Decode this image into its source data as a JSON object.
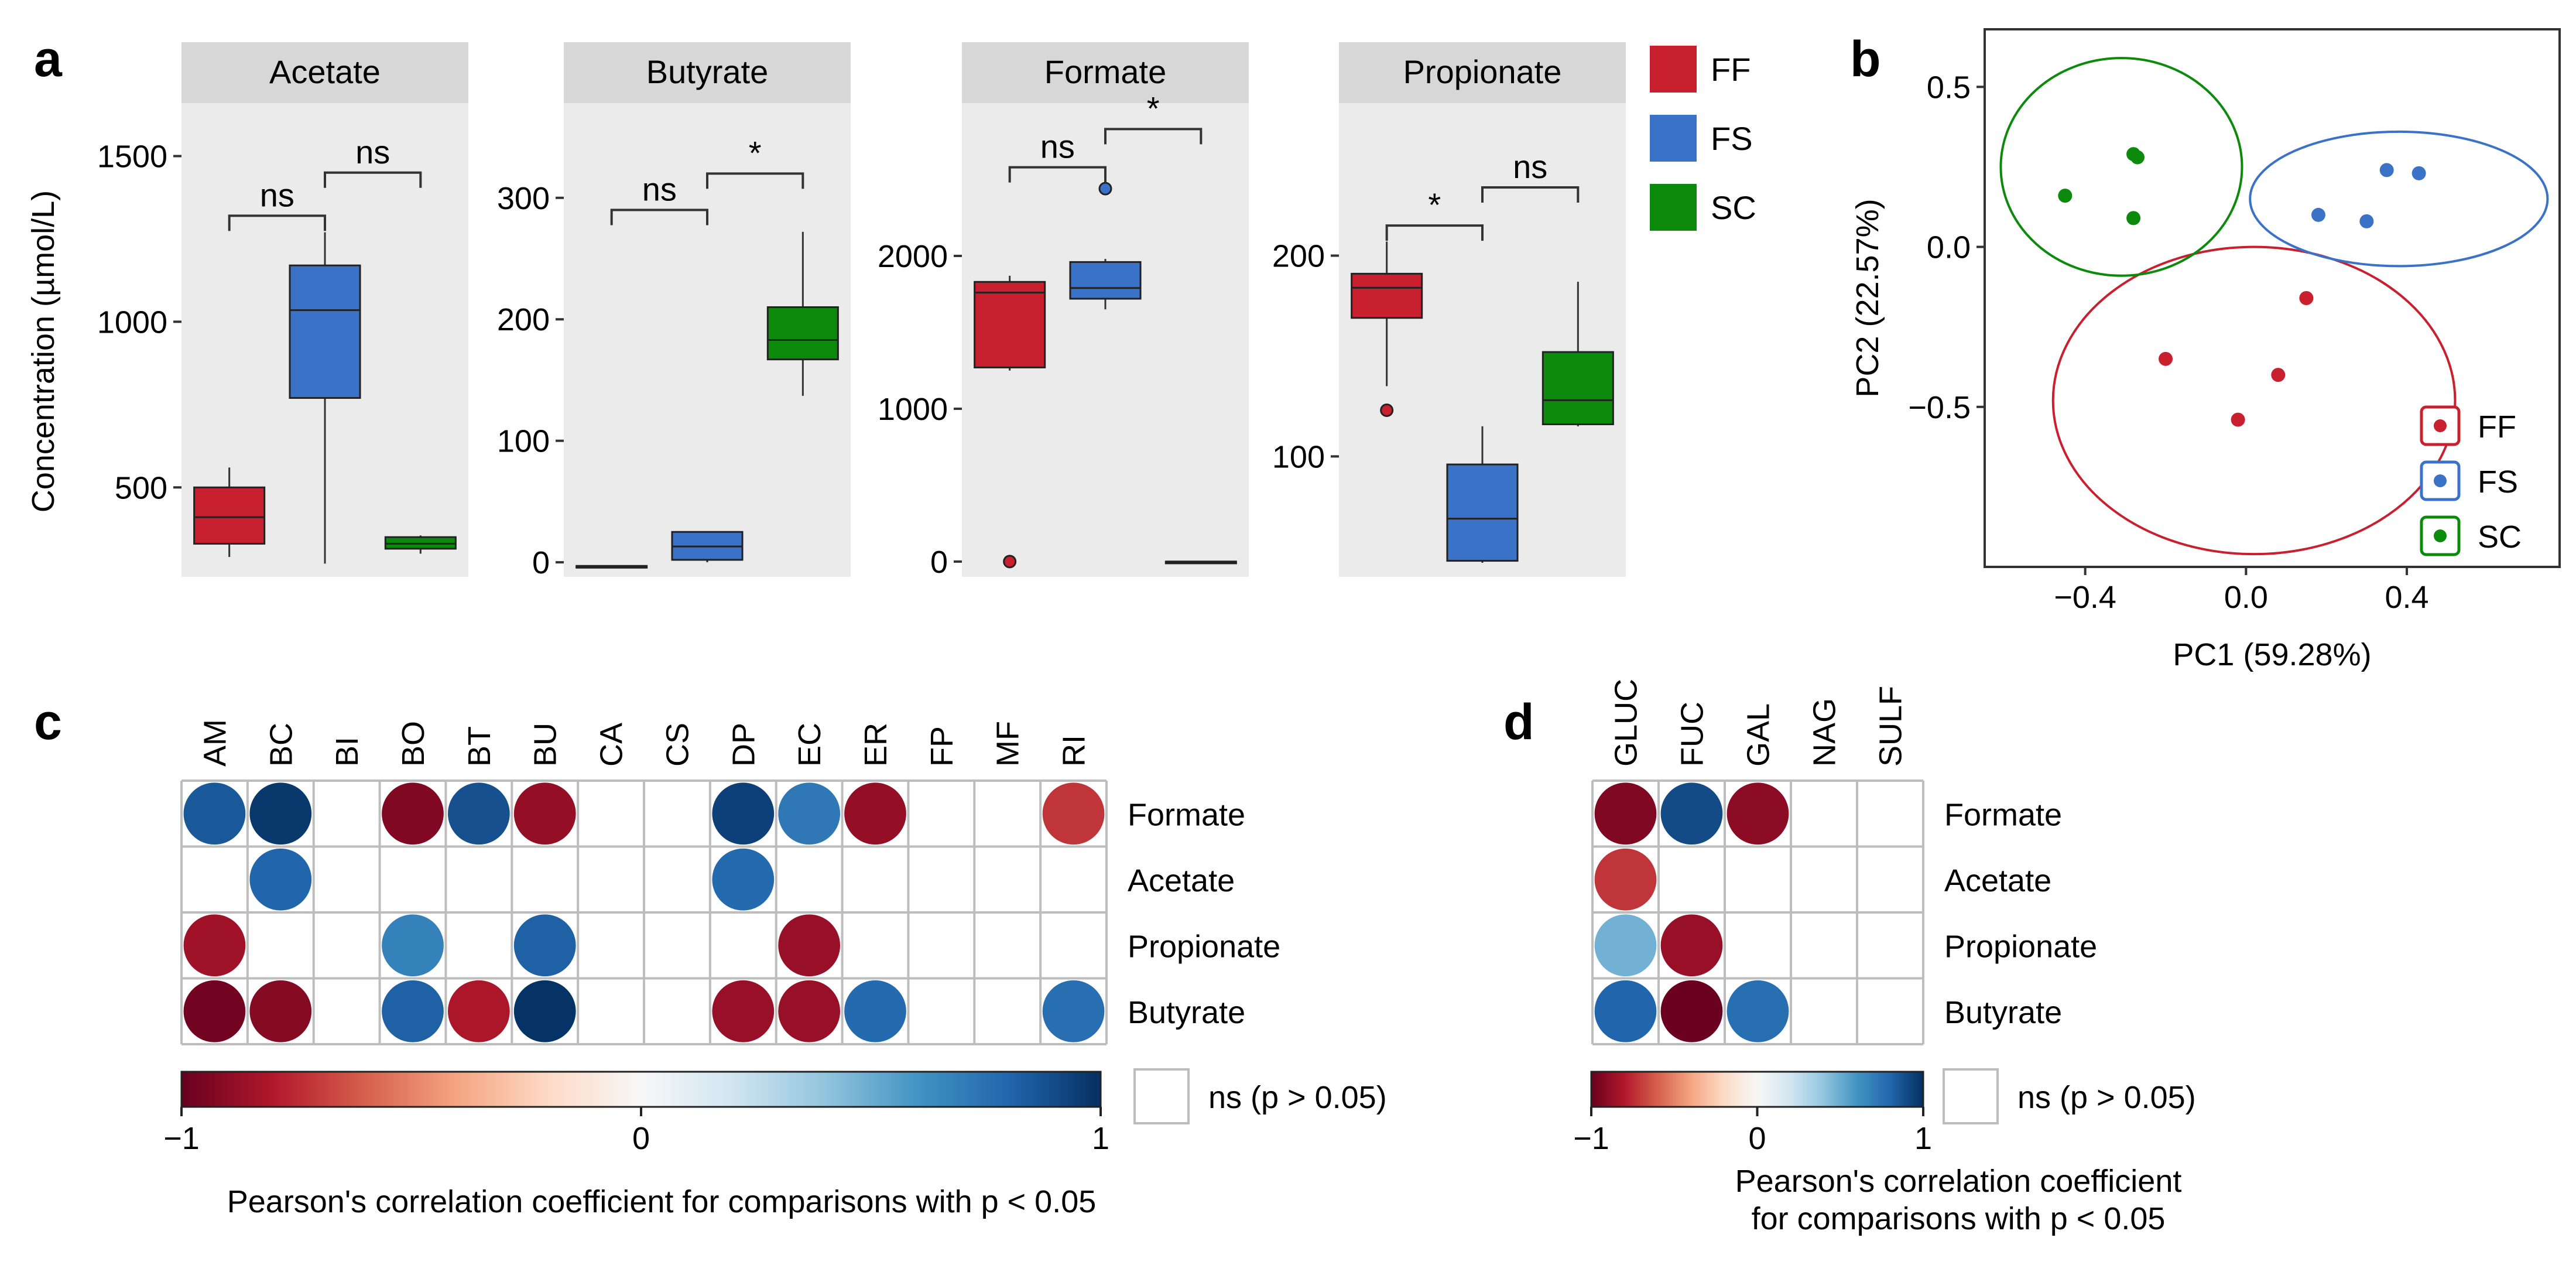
{
  "panel_labels": {
    "a": "a",
    "b": "b",
    "c": "c",
    "d": "d"
  },
  "colors": {
    "FF": "#C8202F",
    "FS": "#3A72C8",
    "SC": "#0C8A0C",
    "neg": "#6A0020",
    "pos": "#0B2A5A",
    "panel_bg": "#EBEBEB",
    "strip_bg": "#D7D7D7"
  },
  "chart_data": [
    {
      "type": "box",
      "id": "panel-a",
      "ylabel": "Concentration (µmol/L)",
      "groups": [
        "FF",
        "FS",
        "SC"
      ],
      "facets": [
        {
          "title": "Acetate",
          "ylim": [
            230,
            1660
          ],
          "yticks": [
            500,
            1000,
            1500
          ],
          "boxes": [
            {
              "group": "FF",
              "min": 290,
              "q1": 330,
              "median": 410,
              "q3": 500,
              "max": 560,
              "outliers": []
            },
            {
              "group": "FS",
              "min": 270,
              "q1": 770,
              "median": 1035,
              "q3": 1170,
              "max": 1270,
              "outliers": []
            },
            {
              "group": "SC",
              "min": 300,
              "q1": 315,
              "median": 330,
              "q3": 350,
              "max": 355,
              "outliers": []
            }
          ],
          "comparisons": [
            {
              "a": "FF",
              "b": "FS",
              "label": "ns",
              "y": 1320
            },
            {
              "a": "FS",
              "b": "SC",
              "label": "ns",
              "y": 1450
            }
          ]
        },
        {
          "title": "Butyrate",
          "ylim": [
            -12,
            378
          ],
          "yticks": [
            0,
            100,
            200,
            300
          ],
          "boxes": [
            {
              "group": "FF",
              "min": -3,
              "q1": -3,
              "median": -3,
              "q3": -3,
              "max": -3,
              "outliers": []
            },
            {
              "group": "FS",
              "min": 0,
              "q1": 2,
              "median": 13,
              "q3": 25,
              "max": 25,
              "outliers": []
            },
            {
              "group": "SC",
              "min": 137,
              "q1": 167,
              "median": 183,
              "q3": 210,
              "max": 272,
              "outliers": []
            }
          ],
          "comparisons": [
            {
              "a": "FF",
              "b": "FS",
              "label": "ns",
              "y": 290
            },
            {
              "a": "FS",
              "b": "SC",
              "label": "*",
              "y": 320
            }
          ]
        },
        {
          "title": "Formate",
          "ylim": [
            -100,
            3000
          ],
          "yticks": [
            0,
            1000,
            2000
          ],
          "boxes": [
            {
              "group": "FF",
              "min": 1250,
              "q1": 1270,
              "median": 1760,
              "q3": 1830,
              "max": 1870,
              "outliers": [
                0
              ]
            },
            {
              "group": "FS",
              "min": 1650,
              "q1": 1720,
              "median": 1790,
              "q3": 1960,
              "max": 1980,
              "outliers": [
                2440
              ]
            },
            {
              "group": "SC",
              "min": 0,
              "q1": 0,
              "median": 0,
              "q3": 0,
              "max": 0,
              "outliers": []
            }
          ],
          "comparisons": [
            {
              "a": "FF",
              "b": "FS",
              "label": "ns",
              "y": 2580
            },
            {
              "a": "FS",
              "b": "SC",
              "label": "*",
              "y": 2830
            }
          ]
        },
        {
          "title": "Propionate",
          "ylim": [
            40,
            276
          ],
          "yticks": [
            100,
            200
          ],
          "boxes": [
            {
              "group": "FF",
              "min": 135,
              "q1": 169,
              "median": 184,
              "q3": 191,
              "max": 207,
              "outliers": [
                123
              ]
            },
            {
              "group": "FS",
              "min": 47,
              "q1": 48,
              "median": 69,
              "q3": 96,
              "max": 115,
              "outliers": []
            },
            {
              "group": "SC",
              "min": 115,
              "q1": 116,
              "median": 128,
              "q3": 152,
              "max": 187,
              "outliers": []
            }
          ],
          "comparisons": [
            {
              "a": "FF",
              "b": "FS",
              "label": "*",
              "y": 215
            },
            {
              "a": "FS",
              "b": "SC",
              "label": "ns",
              "y": 234
            }
          ]
        }
      ],
      "legend": [
        "FF",
        "FS",
        "SC"
      ]
    },
    {
      "type": "scatter",
      "id": "panel-b",
      "xlabel": "PC1 (59.28%)",
      "ylabel": "PC2 (22.57%)",
      "xlim": [
        -0.65,
        0.78
      ],
      "ylim": [
        -1.0,
        0.68
      ],
      "xticks": [
        -0.4,
        0.0,
        0.4
      ],
      "xtick_labels": [
        "−0.4",
        "0.0",
        "0.4"
      ],
      "yticks": [
        0.5,
        0.0,
        -0.5
      ],
      "ytick_labels": [
        "0.5",
        "0.0",
        "−0.5"
      ],
      "series": [
        {
          "name": "FF",
          "x": [
            -0.2,
            0.15,
            -0.02,
            0.08
          ],
          "y": [
            -0.35,
            -0.16,
            -0.54,
            -0.4
          ],
          "ellipse": {
            "cx": 0.02,
            "cy": -0.48,
            "rx": 0.5,
            "ry": 0.48
          }
        },
        {
          "name": "FS",
          "x": [
            0.18,
            0.3,
            0.35,
            0.43
          ],
          "y": [
            0.1,
            0.08,
            0.24,
            0.23
          ],
          "ellipse": {
            "cx": 0.38,
            "cy": 0.15,
            "rx": 0.37,
            "ry": 0.21
          }
        },
        {
          "name": "SC",
          "x": [
            -0.45,
            -0.28,
            -0.27,
            -0.28
          ],
          "y": [
            0.16,
            0.29,
            0.28,
            0.09
          ],
          "ellipse": {
            "cx": -0.31,
            "cy": 0.25,
            "rx": 0.3,
            "ry": 0.34
          }
        }
      ],
      "legend": [
        "FF",
        "FS",
        "SC"
      ]
    },
    {
      "type": "heatmap",
      "id": "panel-c",
      "columns": [
        "AM",
        "BC",
        "BI",
        "BO",
        "BT",
        "BU",
        "CA",
        "CS",
        "DP",
        "EC",
        "ER",
        "FP",
        "MF",
        "RI"
      ],
      "rows": [
        "Formate",
        "Acetate",
        "Propionate",
        "Butyrate"
      ],
      "values": [
        [
          0.85,
          0.97,
          null,
          -0.93,
          0.88,
          -0.88,
          null,
          null,
          0.94,
          0.72,
          -0.88,
          null,
          null,
          -0.72
        ],
        [
          null,
          0.8,
          null,
          null,
          null,
          null,
          null,
          null,
          0.78,
          null,
          null,
          null,
          null,
          null
        ],
        [
          -0.85,
          null,
          null,
          0.68,
          null,
          0.82,
          null,
          null,
          null,
          -0.87,
          null,
          null,
          null,
          null
        ],
        [
          -0.97,
          -0.92,
          null,
          0.82,
          -0.82,
          0.99,
          null,
          null,
          -0.87,
          -0.87,
          0.78,
          null,
          null,
          0.76
        ]
      ],
      "colorbar": {
        "min": -1,
        "max": 1,
        "ticks": [
          -1,
          0,
          1
        ],
        "tick_labels": [
          "−1",
          "0",
          "1"
        ]
      },
      "legend_ns": "ns (p > 0.05)",
      "caption": "Pearson's correlation coefficient for comparisons with p < 0.05"
    },
    {
      "type": "heatmap",
      "id": "panel-d",
      "columns": [
        "GLUC",
        "FUC",
        "GAL",
        "NAG",
        "SULF"
      ],
      "rows": [
        "Formate",
        "Acetate",
        "Propionate",
        "Butyrate"
      ],
      "values": [
        [
          -0.93,
          0.9,
          -0.9,
          null,
          null
        ],
        [
          -0.72,
          null,
          null,
          null,
          null
        ],
        [
          0.48,
          -0.87,
          null,
          null,
          null
        ],
        [
          0.8,
          -0.99,
          0.76,
          null,
          null
        ]
      ],
      "colorbar": {
        "min": -1,
        "max": 1,
        "ticks": [
          -1,
          0,
          1
        ],
        "tick_labels": [
          "−1",
          "0",
          "1"
        ]
      },
      "legend_ns": "ns (p > 0.05)",
      "caption_lines": [
        "Pearson's correlation coefficient",
        "for comparisons with p < 0.05"
      ]
    }
  ]
}
